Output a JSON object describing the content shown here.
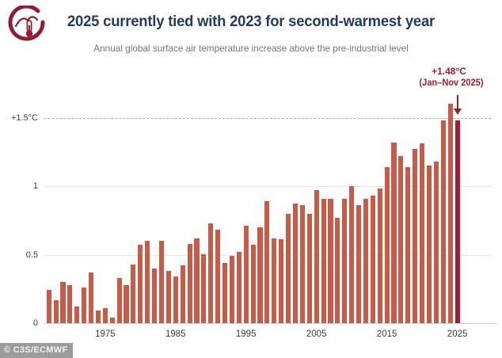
{
  "header": {
    "title": "2025 currently tied with 2023 for second-warmest year",
    "subtitle": "Annual global surface air temperature increase above the pre-industrial level"
  },
  "annotation": {
    "value": "+1.48°C",
    "period": "(Jan–Nov 2025)"
  },
  "credit": "© C3S/ECMWF",
  "colors": {
    "bar": "#c75b47",
    "highlight_bar": "#a21e2f",
    "title_text": "#243a5e",
    "subtitle_text": "#71757d",
    "annotation_text": "#a21e2f",
    "logo": "#8f1d33",
    "credit_bg": "#9c9c9c"
  },
  "chart_data": {
    "type": "bar",
    "title": "2025 currently tied with 2023 for second-warmest year",
    "subtitle": "Annual global surface air temperature increase above the pre-industrial level",
    "unit": "°C above pre-industrial level",
    "ylim": [
      0,
      1.65
    ],
    "grid": "horizontal",
    "highlight_year": 2025,
    "highlight_label": "+1.48°C (Jan–Nov 2025)",
    "yticks": [
      {
        "label": "0",
        "value": 0,
        "style": "baseline"
      },
      {
        "label": "0.5",
        "value": 0.5,
        "style": "solid"
      },
      {
        "label": "1",
        "value": 1.0,
        "style": "solid"
      },
      {
        "label": "+1.5°C",
        "value": 1.5,
        "style": "dashed"
      }
    ],
    "xticks": [
      1975,
      1985,
      1995,
      2005,
      2015,
      2025
    ],
    "years": [
      1967,
      1968,
      1969,
      1970,
      1971,
      1972,
      1973,
      1974,
      1975,
      1976,
      1977,
      1978,
      1979,
      1980,
      1981,
      1982,
      1983,
      1984,
      1985,
      1986,
      1987,
      1988,
      1989,
      1990,
      1991,
      1992,
      1993,
      1994,
      1995,
      1996,
      1997,
      1998,
      1999,
      2000,
      2001,
      2002,
      2003,
      2004,
      2005,
      2006,
      2007,
      2008,
      2009,
      2010,
      2011,
      2012,
      2013,
      2014,
      2015,
      2016,
      2017,
      2018,
      2019,
      2020,
      2021,
      2022,
      2023,
      2024,
      2025
    ],
    "values": [
      0.24,
      0.17,
      0.3,
      0.28,
      0.12,
      0.26,
      0.37,
      0.09,
      0.11,
      0.04,
      0.33,
      0.28,
      0.43,
      0.57,
      0.6,
      0.4,
      0.6,
      0.38,
      0.34,
      0.42,
      0.58,
      0.62,
      0.5,
      0.73,
      0.68,
      0.44,
      0.49,
      0.52,
      0.71,
      0.57,
      0.7,
      0.89,
      0.62,
      0.61,
      0.8,
      0.87,
      0.86,
      0.8,
      0.97,
      0.91,
      0.91,
      0.77,
      0.91,
      1.0,
      0.86,
      0.91,
      0.93,
      0.98,
      1.14,
      1.32,
      1.22,
      1.14,
      1.27,
      1.31,
      1.15,
      1.18,
      1.48,
      1.6,
      1.48
    ]
  }
}
